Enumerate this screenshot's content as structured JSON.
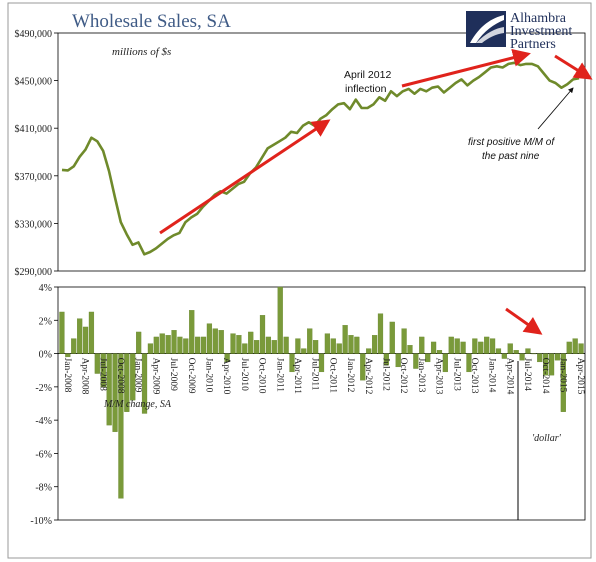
{
  "chart_data": [
    {
      "type": "line",
      "title": "Wholesale Sales, SA",
      "units": "millions of $s",
      "ylim": [
        290000,
        490000
      ],
      "yticks": [
        "$290,000",
        "$330,000",
        "$370,000",
        "$410,000",
        "$450,000",
        "$490,000"
      ],
      "ytick_values": [
        290000,
        330000,
        370000,
        410000,
        450000,
        490000
      ],
      "x": [
        "Jan-2008",
        "Feb-2008",
        "Mar-2008",
        "Apr-2008",
        "May-2008",
        "Jun-2008",
        "Jul-2008",
        "Aug-2008",
        "Sep-2008",
        "Oct-2008",
        "Nov-2008",
        "Dec-2008",
        "Jan-2009",
        "Feb-2009",
        "Mar-2009",
        "Apr-2009",
        "May-2009",
        "Jun-2009",
        "Jul-2009",
        "Aug-2009",
        "Sep-2009",
        "Oct-2009",
        "Nov-2009",
        "Dec-2009",
        "Jan-2010",
        "Feb-2010",
        "Mar-2010",
        "Apr-2010",
        "May-2010",
        "Jun-2010",
        "Jul-2010",
        "Aug-2010",
        "Sep-2010",
        "Oct-2010",
        "Nov-2010",
        "Dec-2010",
        "Jan-2011",
        "Feb-2011",
        "Mar-2011",
        "Apr-2011",
        "May-2011",
        "Jun-2011",
        "Jul-2011",
        "Aug-2011",
        "Sep-2011",
        "Oct-2011",
        "Nov-2011",
        "Dec-2011",
        "Jan-2012",
        "Feb-2012",
        "Mar-2012",
        "Apr-2012",
        "May-2012",
        "Jun-2012",
        "Jul-2012",
        "Aug-2012",
        "Sep-2012",
        "Oct-2012",
        "Nov-2012",
        "Dec-2012",
        "Jan-2013",
        "Feb-2013",
        "Mar-2013",
        "Apr-2013",
        "May-2013",
        "Jun-2013",
        "Jul-2013",
        "Aug-2013",
        "Sep-2013",
        "Oct-2013",
        "Nov-2013",
        "Dec-2013",
        "Jan-2014",
        "Feb-2014",
        "Mar-2014",
        "Apr-2014",
        "May-2014",
        "Jun-2014",
        "Jul-2014",
        "Aug-2014",
        "Sep-2014",
        "Oct-2014",
        "Nov-2014",
        "Dec-2014",
        "Jan-2015",
        "Feb-2015",
        "Mar-2015",
        "Apr-2015",
        "May-2015"
      ],
      "values": [
        375000,
        374500,
        378000,
        386000,
        392000,
        402000,
        399000,
        391000,
        374000,
        352000,
        331000,
        321000,
        312000,
        314000,
        304000,
        306000,
        309000,
        313000,
        317000,
        320000,
        322000,
        331000,
        335000,
        338000,
        344000,
        349000,
        354000,
        357000,
        355000,
        359000,
        363000,
        365000,
        372000,
        377000,
        385000,
        393000,
        396000,
        399000,
        402000,
        407000,
        406000,
        412000,
        415000,
        412000,
        418000,
        421000,
        426000,
        430000,
        431000,
        426000,
        434000,
        427000,
        427000,
        430000,
        436000,
        433000,
        441000,
        437000,
        441000,
        443000,
        439000,
        443000,
        441000,
        444000,
        445000,
        440000,
        444000,
        448000,
        451000,
        446000,
        450000,
        453000,
        457000,
        461000,
        462000,
        461000,
        464000,
        465000,
        463000,
        464000,
        464000,
        462000,
        456000,
        450000,
        448000,
        444000,
        447000,
        451000,
        452000
      ],
      "annotations": {
        "inflection": [
          "April 2012",
          "inflection"
        ],
        "positive": [
          "first positive M/M of",
          "the past nine"
        ]
      }
    },
    {
      "type": "bar",
      "subtitle": "M/M change, SA",
      "ylim": [
        -10,
        4
      ],
      "yticks": [
        "4%",
        "2%",
        "0%",
        "-2%",
        "-4%",
        "-6%",
        "-8%",
        "-10%"
      ],
      "ytick_values": [
        4,
        2,
        0,
        -2,
        -4,
        -6,
        -8,
        -10
      ],
      "x_labels": [
        "Jan-2008",
        "Apr-2008",
        "Jul-2008",
        "Oct-2008",
        "Jan-2009",
        "Apr-2009",
        "Jul-2009",
        "Oct-2009",
        "Jan-2010",
        "Apr-2010",
        "Jul-2010",
        "Oct-2010",
        "Jan-2011",
        "Apr-2011",
        "Jul-2011",
        "Oct-2011",
        "Jan-2012",
        "Apr-2012",
        "Jul-2012",
        "Oct-2012",
        "Jan-2013",
        "Apr-2013",
        "Jul-2013",
        "Oct-2013",
        "Jan-2014",
        "Apr-2014",
        "Jul-2014",
        "Oct-2014",
        "Jan-2015",
        "Apr-2015"
      ],
      "values": [
        2.5,
        -0.2,
        0.9,
        2.1,
        1.6,
        2.5,
        -1.2,
        -2.0,
        -4.3,
        -4.7,
        -8.7,
        -3.5,
        -2.8,
        1.3,
        -3.6,
        0.6,
        1.0,
        1.2,
        1.1,
        1.4,
        1.0,
        0.9,
        2.6,
        1.0,
        1.0,
        1.8,
        1.5,
        1.4,
        -0.5,
        1.2,
        1.1,
        0.6,
        1.3,
        0.8,
        2.3,
        1.0,
        0.8,
        4.0,
        1.0,
        -1.1,
        0.9,
        0.3,
        1.5,
        0.8,
        -1.1,
        1.2,
        0.9,
        0.6,
        1.7,
        1.1,
        1.0,
        -1.6,
        0.3,
        1.1,
        2.4,
        -0.7,
        1.9,
        -0.8,
        1.5,
        0.5,
        -0.9,
        1.0,
        -0.5,
        0.7,
        0.2,
        -1.1,
        1.0,
        0.9,
        0.7,
        -1.1,
        0.9,
        0.7,
        1.0,
        0.9,
        0.3,
        -0.3,
        0.6,
        0.2,
        -0.4,
        0.3,
        0.0,
        -0.5,
        -1.3,
        -1.3,
        -0.4,
        -3.5,
        0.7,
        0.9,
        0.6
      ],
      "divider_at": "Jul-2014",
      "divider_label": "'dollar'"
    }
  ],
  "colors": {
    "line": "#6f8a2b",
    "bar": "#7a9a3a",
    "bar_edge": "#5f7f25",
    "arrow": "#e0231c",
    "title": "#3f5b86"
  },
  "logo": {
    "line1": "Alhambra",
    "line2": "Investment",
    "line3": "Partners"
  }
}
